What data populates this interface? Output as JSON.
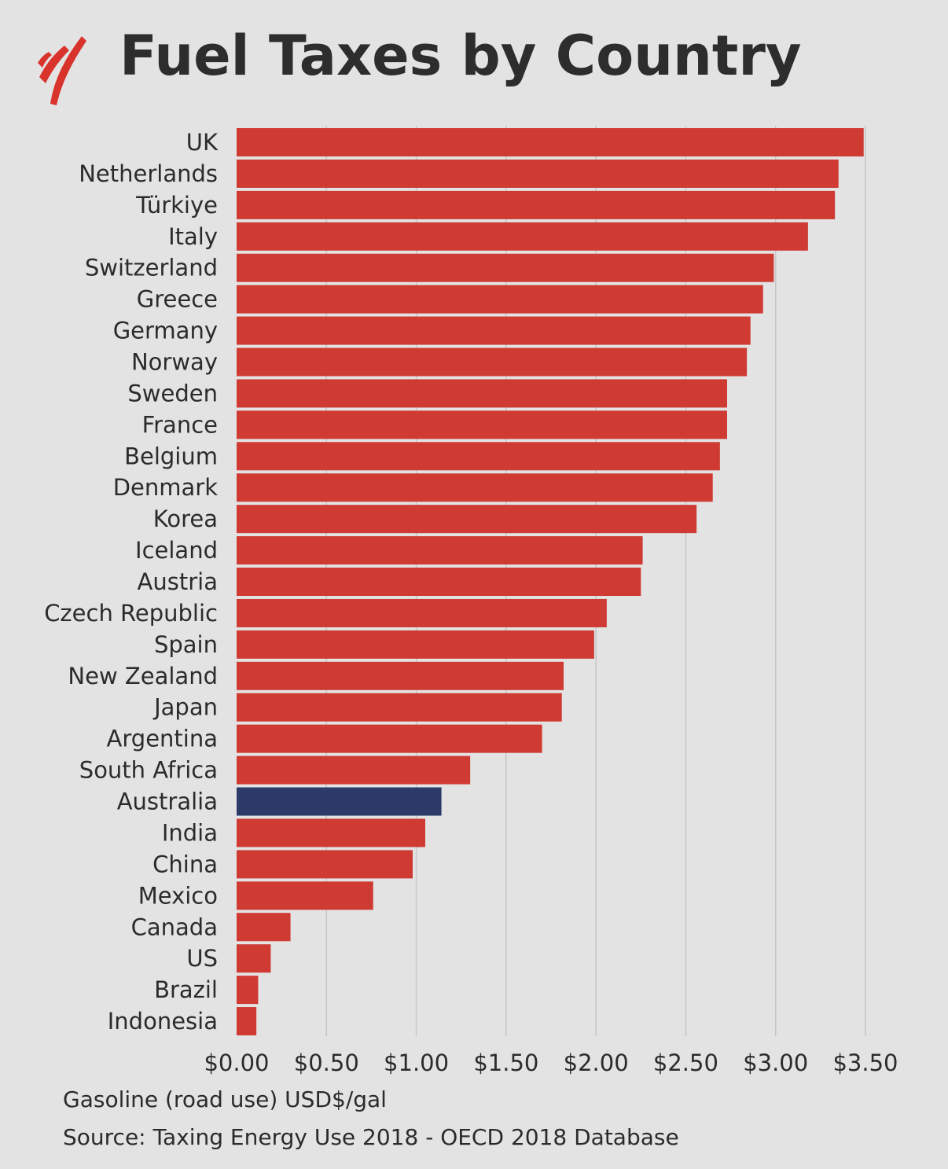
{
  "title": "Fuel Taxes by Country",
  "logo_icon": "sbs-logo-icon",
  "chart_data": {
    "type": "bar",
    "orientation": "horizontal",
    "categories": [
      "UK",
      "Netherlands",
      "Türkiye",
      "Italy",
      "Switzerland",
      "Greece",
      "Germany",
      "Norway",
      "Sweden",
      "France",
      "Belgium",
      "Denmark",
      "Korea",
      "Iceland",
      "Austria",
      "Czech Republic",
      "Spain",
      "New Zealand",
      "Japan",
      "Argentina",
      "South Africa",
      "Australia",
      "India",
      "China",
      "Mexico",
      "Canada",
      "US",
      "Brazil",
      "Indonesia"
    ],
    "values": [
      3.49,
      3.35,
      3.33,
      3.18,
      2.99,
      2.93,
      2.86,
      2.84,
      2.73,
      2.73,
      2.69,
      2.65,
      2.56,
      2.26,
      2.25,
      2.06,
      1.99,
      1.82,
      1.81,
      1.7,
      1.3,
      1.14,
      1.05,
      0.98,
      0.76,
      0.3,
      0.19,
      0.12,
      0.11
    ],
    "highlight": "Australia",
    "xlim": [
      0,
      3.5
    ],
    "ticks": [
      0,
      0.5,
      1,
      1.5,
      2,
      2.5,
      3,
      3.5
    ],
    "tick_labels": [
      "$0.00",
      "$0.50",
      "$1.00",
      "$1.50",
      "$2.00",
      "$2.50",
      "$3.00",
      "$3.50"
    ],
    "xlabel": "Gasoline (road use) USD$/gal",
    "ylabel": "",
    "grid": "vertical",
    "legend": "none",
    "colors": {
      "bar": "#cf3a33",
      "highlight": "#2b3a66",
      "grid": "#c6c6c6",
      "background": "#e3e3e3",
      "logo": "#d8342c"
    }
  },
  "source": "Source: Taxing Energy Use 2018 - OECD 2018 Database"
}
